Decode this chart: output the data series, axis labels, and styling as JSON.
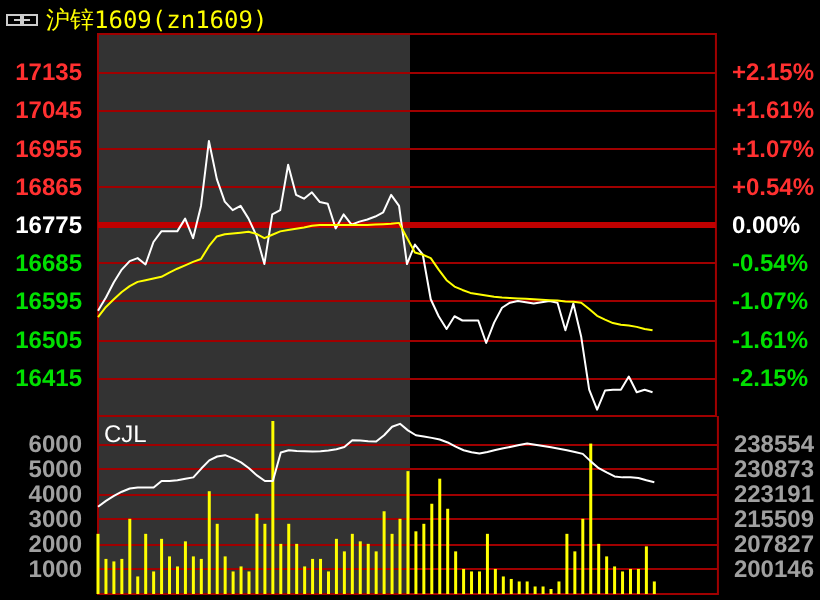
{
  "chart_data": [
    {
      "type": "line",
      "title": "沪锌1609(zn1609)",
      "categories": [
        null,
        null,
        null,
        null,
        null,
        null,
        null,
        null,
        null,
        null,
        null,
        null,
        null,
        null,
        null,
        null,
        null,
        null,
        null,
        null,
        null,
        null,
        null,
        null,
        null,
        null,
        null,
        null,
        null,
        null,
        null,
        null,
        null,
        null,
        null,
        null,
        null,
        null,
        null,
        null,
        null,
        null,
        null,
        null,
        null,
        null,
        null,
        null,
        null,
        null,
        null,
        null,
        null,
        null,
        null,
        null,
        null,
        null,
        null,
        null,
        null,
        null,
        null,
        null,
        null,
        null,
        null,
        null,
        null,
        null,
        null,
        null,
        null,
        null,
        null,
        null,
        null,
        null,
        null
      ],
      "ylim": [
        16325,
        17225
      ],
      "yticks": [
        16415,
        16505,
        16595,
        16685,
        16775,
        16865,
        16955,
        17045,
        17135
      ],
      "y2lim": [
        -2.68,
        2.68
      ],
      "y2ticks": [
        {
          "value": -2.15,
          "label": "-2.15%"
        },
        {
          "value": -1.61,
          "label": "-1.61%"
        },
        {
          "value": -1.07,
          "label": "-1.07%"
        },
        {
          "value": -0.54,
          "label": "-0.54%"
        },
        {
          "value": 0,
          "label": "0.00%"
        },
        {
          "value": 0.54,
          "label": "+0.54%"
        },
        {
          "value": 1.07,
          "label": "+1.07%"
        },
        {
          "value": 1.61,
          "label": "+1.61%"
        },
        {
          "value": 2.15,
          "label": "+2.15%"
        }
      ],
      "tick_labels": "y",
      "grid": "y",
      "line_style": "solid",
      "ref_lines": [
        {
          "axis": "y",
          "value": 16775,
          "color": "#c00000"
        }
      ],
      "series": [
        {
          "color": "#ffffff",
          "values": [
            16573,
            16604,
            16640,
            16670,
            16690,
            16697,
            16682,
            16735,
            16760,
            16760,
            16760,
            16790,
            16744,
            16820,
            16973,
            16883,
            16830,
            16810,
            16820,
            16790,
            16750,
            16683,
            16800,
            16810,
            16917,
            16846,
            16837,
            16852,
            16829,
            16825,
            16767,
            16800,
            16776,
            16783,
            16788,
            16795,
            16805,
            16846,
            16820,
            16683,
            16729,
            16705,
            16600,
            16560,
            16530,
            16560,
            16550,
            16550,
            16550,
            16497,
            16545,
            16580,
            16592,
            16596,
            16593,
            16590,
            16593,
            16596,
            16592,
            16527,
            16590,
            16511,
            16387,
            16340,
            16385,
            16387,
            16387,
            16418,
            16381,
            16387,
            16381,
            null,
            null,
            null,
            null,
            null,
            null,
            null,
            null
          ]
        },
        {
          "color": "#ffff00",
          "values": [
            16558,
            16582,
            16600,
            16617,
            16631,
            16641,
            16645,
            16649,
            16653,
            16663,
            16672,
            16680,
            16688,
            16695,
            16725,
            16748,
            16753,
            16755,
            16757,
            16759,
            16754,
            16744,
            16752,
            16760,
            16763,
            16766,
            16769,
            16773,
            16775,
            16775,
            16775,
            16775,
            16775,
            16775,
            16775,
            16776,
            16777,
            16778,
            16780,
            16745,
            16710,
            16705,
            16697,
            16670,
            16645,
            16630,
            16622,
            16615,
            16612,
            16609,
            16606,
            16604,
            16603,
            16602,
            16601,
            16600,
            16599,
            16598,
            16597,
            16595,
            16594,
            16592,
            16577,
            16561,
            16552,
            16544,
            16540,
            16538,
            16535,
            16530,
            16527,
            null,
            null,
            null,
            null,
            null,
            null,
            null,
            null
          ]
        }
      ]
    },
    {
      "type": "bar",
      "annotations": [
        "CJL"
      ],
      "categories": [
        null,
        null,
        null,
        null,
        null,
        null,
        null,
        null,
        null,
        null,
        null,
        null,
        null,
        null,
        null,
        null,
        null,
        null,
        null,
        null,
        null,
        null,
        null,
        null,
        null,
        null,
        null,
        null,
        null,
        null,
        null,
        null,
        null,
        null,
        null,
        null,
        null,
        null,
        null,
        null,
        null,
        null,
        null,
        null,
        null,
        null,
        null,
        null,
        null,
        null,
        null,
        null,
        null,
        null,
        null,
        null,
        null,
        null,
        null,
        null,
        null,
        null,
        null,
        null,
        null,
        null,
        null,
        null,
        null,
        null,
        null,
        null,
        null,
        null,
        null,
        null,
        null,
        null,
        null
      ],
      "ylim": [
        0,
        7100
      ],
      "yticks": [
        1000,
        2000,
        3000,
        4000,
        5000,
        6000
      ],
      "y2lim": [
        192464,
        247004
      ],
      "y2ticks": [
        200146,
        207827,
        215509,
        223191,
        230873,
        238554
      ],
      "tick_labels": "y",
      "grid": "y",
      "series": [
        {
          "color": "#ffff00",
          "values": [
            2400,
            1400,
            1300,
            1400,
            3000,
            700,
            2400,
            900,
            2200,
            1500,
            1100,
            2100,
            1500,
            1400,
            4100,
            2800,
            1500,
            900,
            1100,
            900,
            3200,
            2800,
            6900,
            2000,
            2800,
            2000,
            1100,
            1400,
            1400,
            900,
            2200,
            1700,
            2400,
            2100,
            2000,
            1700,
            3300,
            2400,
            3000,
            4900,
            2500,
            2800,
            3600,
            4600,
            3400,
            1700,
            1000,
            900,
            900,
            2400,
            1000,
            700,
            600,
            500,
            500,
            300,
            300,
            200,
            500,
            2400,
            1700,
            3000,
            6000,
            2000,
            1500,
            1100,
            900,
            1000,
            1000,
            1900,
            500,
            null,
            null,
            null,
            null,
            null,
            null,
            null,
            null
          ]
        },
        {
          "type": "line",
          "axis": "y2",
          "color": "#ffffff",
          "values": [
            219200,
            221000,
            222500,
            223800,
            224800,
            225100,
            225100,
            225100,
            227100,
            227100,
            227300,
            227800,
            228200,
            230900,
            233400,
            234600,
            235000,
            234000,
            232800,
            231000,
            228800,
            227100,
            227100,
            235800,
            236500,
            236300,
            236200,
            236100,
            236200,
            236400,
            236800,
            237500,
            239600,
            239500,
            239300,
            239200,
            241100,
            243700,
            244600,
            242600,
            241100,
            240700,
            240300,
            239800,
            238900,
            237600,
            236500,
            235900,
            235500,
            236000,
            236600,
            237100,
            237600,
            238100,
            238600,
            238200,
            237800,
            237400,
            237000,
            236500,
            236000,
            235400,
            233100,
            231000,
            229700,
            228500,
            228200,
            228200,
            228000,
            227300,
            226700,
            null,
            null,
            null,
            null,
            null,
            null,
            null,
            null
          ]
        }
      ]
    }
  ]
}
